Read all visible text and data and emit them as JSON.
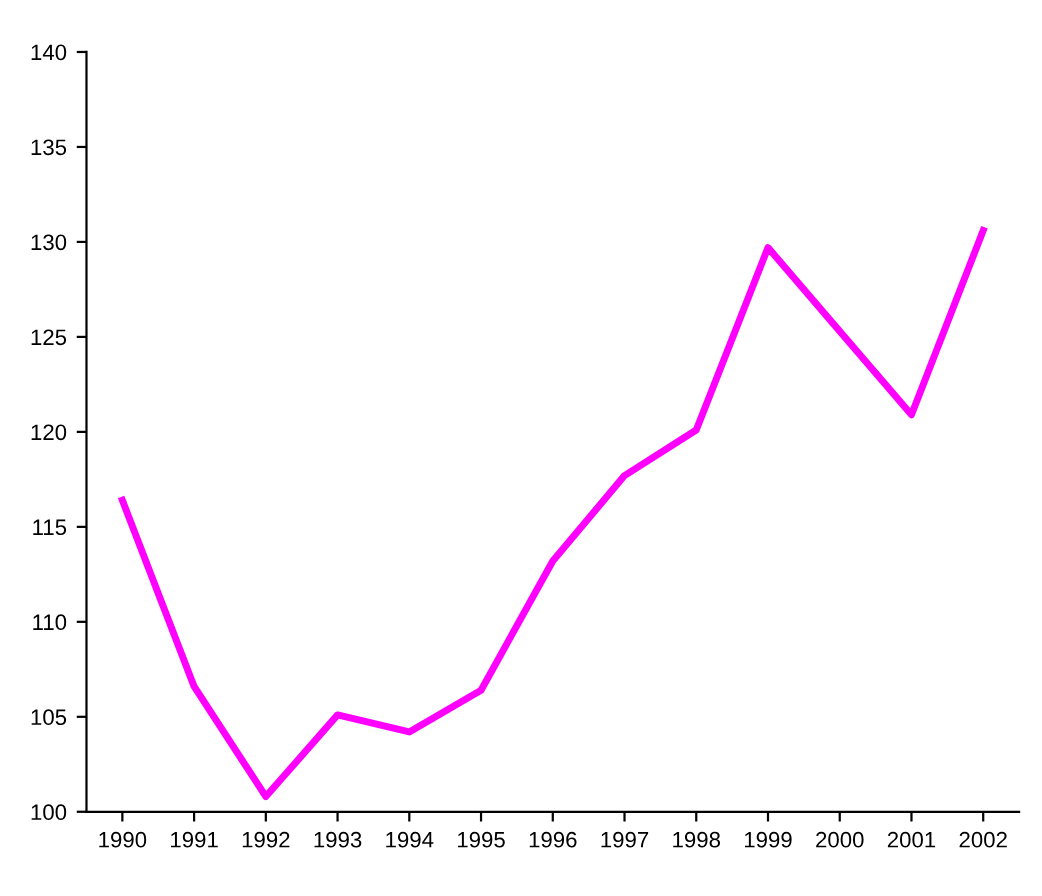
{
  "chart_data": {
    "type": "line",
    "categories": [
      "1990",
      "1991",
      "1992",
      "1993",
      "1994",
      "1995",
      "1996",
      "1997",
      "1998",
      "1999",
      "2000",
      "2001",
      "2002"
    ],
    "series": [
      {
        "color": "#ff00ff",
        "values": [
          116.4,
          106.6,
          100.8,
          105.1,
          104.2,
          106.4,
          113.2,
          117.7,
          120.1,
          129.7,
          125.3,
          120.9,
          130.6
        ]
      }
    ],
    "ylim": [
      100,
      140
    ],
    "yticks": [
      100,
      105,
      110,
      115,
      120,
      125,
      130,
      135,
      140
    ],
    "grid": false,
    "legend": false,
    "marker": "none",
    "line_style": "solid"
  }
}
